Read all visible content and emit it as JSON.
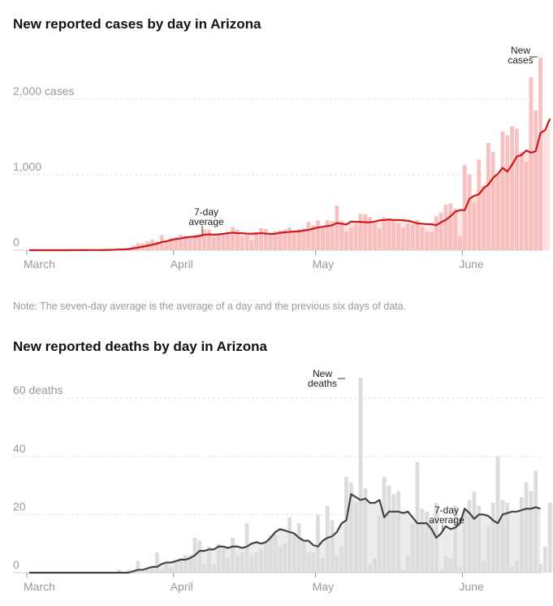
{
  "chart_data": [
    {
      "type": "bar",
      "title": "New reported cases by day in Arizona",
      "xlabel": "",
      "ylabel": "",
      "x_start": "March 1",
      "x_end": "June 16",
      "ylim": [
        0,
        2500
      ],
      "y_ticks": [
        {
          "value": 0,
          "label": "0"
        },
        {
          "value": 1000,
          "label": "1,000"
        },
        {
          "value": 2000,
          "label": "2,000 cases"
        }
      ],
      "x_ticks": [
        {
          "day": 0,
          "label": "March"
        },
        {
          "day": 31,
          "label": "April"
        },
        {
          "day": 61,
          "label": "May"
        },
        {
          "day": 92,
          "label": "June"
        }
      ],
      "grid": true,
      "series": [
        {
          "name": "New cases",
          "kind": "bar",
          "color": "#f7b6b6",
          "values": [
            0,
            0,
            0,
            0,
            0,
            0,
            0,
            0,
            1,
            3,
            0,
            1,
            4,
            3,
            3,
            5,
            8,
            9,
            14,
            27,
            20,
            30,
            65,
            95,
            90,
            115,
            140,
            120,
            200,
            115,
            160,
            175,
            205,
            185,
            150,
            205,
            215,
            275,
            270,
            175,
            220,
            195,
            245,
            305,
            270,
            185,
            220,
            135,
            235,
            290,
            280,
            200,
            250,
            260,
            275,
            300,
            260,
            280,
            290,
            380,
            330,
            395,
            305,
            400,
            385,
            590,
            390,
            245,
            300,
            350,
            480,
            480,
            440,
            360,
            290,
            435,
            420,
            390,
            360,
            300,
            350,
            340,
            400,
            310,
            245,
            245,
            450,
            500,
            600,
            620,
            550,
            180,
            1130,
            1000,
            640,
            1200,
            860,
            1420,
            1300,
            990,
            1570,
            1520,
            1640,
            1610,
            1300,
            1170,
            2290,
            1850,
            2550
          ],
          "annotation": "New cases"
        },
        {
          "name": "7-day average",
          "kind": "line",
          "color": "#cc1a1a",
          "values": [
            0,
            0,
            0,
            0,
            0,
            0,
            0,
            0,
            0,
            1,
            1,
            1,
            1,
            2,
            2,
            2,
            3,
            4,
            6,
            9,
            11,
            15,
            24,
            35,
            47,
            58,
            74,
            87,
            108,
            118,
            135,
            147,
            155,
            168,
            175,
            180,
            188,
            205,
            210,
            205,
            210,
            215,
            225,
            232,
            226,
            225,
            220,
            218,
            222,
            225,
            220,
            215,
            218,
            230,
            237,
            241,
            248,
            250,
            260,
            270,
            285,
            300,
            310,
            320,
            330,
            360,
            350,
            340,
            380,
            375,
            375,
            370,
            370,
            380,
            395,
            400,
            405,
            400,
            400,
            395,
            390,
            375,
            355,
            350,
            345,
            345,
            330,
            370,
            400,
            450,
            510,
            530,
            530,
            680,
            720,
            740,
            820,
            870,
            960,
            1010,
            1090,
            1040,
            1130,
            1240,
            1260,
            1320,
            1290,
            1310,
            1550,
            1590,
            1740
          ],
          "annotation": "7-day average"
        }
      ],
      "note": "Note: The seven-day average is the average of a day and the previous six days of data."
    },
    {
      "type": "bar",
      "title": "New reported deaths by day in Arizona",
      "xlabel": "",
      "ylabel": "",
      "x_start": "March 1",
      "x_end": "June 16",
      "ylim": [
        0,
        70
      ],
      "y_ticks": [
        {
          "value": 0,
          "label": "0"
        },
        {
          "value": 20,
          "label": "20"
        },
        {
          "value": 40,
          "label": "40"
        },
        {
          "value": 60,
          "label": "60 deaths"
        }
      ],
      "x_ticks": [
        {
          "day": 0,
          "label": "March"
        },
        {
          "day": 31,
          "label": "April"
        },
        {
          "day": 61,
          "label": "May"
        },
        {
          "day": 92,
          "label": "June"
        }
      ],
      "grid": true,
      "series": [
        {
          "name": "New deaths",
          "kind": "bar",
          "color": "#dcdcdc",
          "values": [
            0,
            0,
            0,
            0,
            0,
            0,
            0,
            0,
            0,
            0,
            0,
            0,
            0,
            0,
            0,
            0,
            0,
            0,
            0,
            1,
            0,
            1,
            0,
            4,
            0,
            1,
            2,
            7,
            1,
            3,
            2,
            4,
            5,
            6,
            6,
            12,
            11,
            3,
            9,
            3,
            10,
            9,
            5,
            12,
            6,
            7,
            17,
            6,
            7,
            8,
            11,
            13,
            13,
            9,
            10,
            19,
            13,
            17,
            11,
            7,
            7,
            20,
            5,
            23,
            18,
            6,
            9,
            33,
            31,
            24,
            67,
            29,
            3,
            5,
            20,
            33,
            30,
            27,
            28,
            1,
            6,
            17,
            38,
            22,
            21,
            18,
            24,
            1,
            6,
            5,
            23,
            2,
            22,
            25,
            28,
            23,
            4,
            16,
            24,
            40,
            25,
            24,
            2,
            4,
            26,
            31,
            28,
            35,
            3,
            9,
            24,
            24,
            35
          ],
          "annotation": "New deaths"
        },
        {
          "name": "7-day average",
          "kind": "line",
          "color": "#444444",
          "values": [
            0,
            0,
            0,
            0,
            0,
            0,
            0,
            0,
            0,
            0,
            0,
            0,
            0,
            0,
            0,
            0,
            0,
            0,
            0,
            0,
            0,
            0,
            0.5,
            1,
            1,
            1.5,
            2,
            2,
            3,
            3.5,
            3.5,
            4,
            4.5,
            4.5,
            5,
            6,
            7.5,
            7.5,
            8,
            8,
            9,
            9,
            8.5,
            9,
            9,
            8.5,
            9,
            10,
            10.5,
            10,
            10.5,
            12,
            14,
            15,
            14.5,
            14,
            13.5,
            12,
            11,
            11,
            9.5,
            9,
            11,
            12,
            12.5,
            14,
            17,
            18,
            27,
            26,
            25,
            25.5,
            24,
            24,
            25,
            19,
            21,
            21,
            21,
            20.5,
            21,
            19,
            17,
            17,
            17,
            15,
            12,
            13.5,
            16,
            15,
            15.5,
            17,
            22,
            20.5,
            18.5,
            20,
            20,
            19.5,
            18,
            17,
            20,
            20.5,
            21,
            21,
            21.5,
            22,
            22,
            22.5,
            22
          ],
          "annotation": "7-day average"
        }
      ]
    }
  ],
  "note_text": "Note: The seven-day average is the average of a day and the previous six days of data."
}
